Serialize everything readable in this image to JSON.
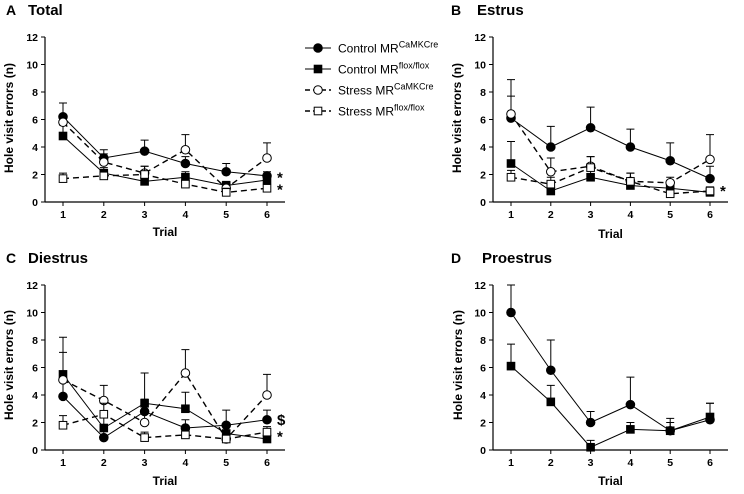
{
  "chart_data": [
    {
      "id": "A",
      "letter": "A",
      "title": "Total",
      "type": "line",
      "x": [
        1,
        2,
        3,
        4,
        5,
        6
      ],
      "xlabel": "Trial",
      "ylabel": "Hole visit errors (n)",
      "ylim": [
        0,
        12
      ],
      "yticks": [
        0,
        2,
        4,
        6,
        8,
        10,
        12
      ],
      "series": [
        {
          "name": "Control MR CaMKCre",
          "marker": "filled-circle",
          "dash": false,
          "values": [
            6.2,
            3.2,
            3.7,
            2.8,
            2.2,
            1.9
          ],
          "errors": [
            1.0,
            0.6,
            0.8,
            0.5,
            0.6,
            0.3
          ]
        },
        {
          "name": "Control MR flox/flox",
          "marker": "filled-square",
          "dash": false,
          "values": [
            4.8,
            2.1,
            1.5,
            1.8,
            1.2,
            1.6
          ],
          "errors": [
            0.8,
            0.4,
            0.3,
            0.4,
            0.3,
            0.3
          ]
        },
        {
          "name": "Stress MR CaMKCre",
          "marker": "open-circle",
          "dash": true,
          "values": [
            5.8,
            2.9,
            2.1,
            3.8,
            1.0,
            3.2
          ],
          "errors": [
            1.4,
            0.6,
            0.5,
            1.1,
            0.4,
            1.1
          ]
        },
        {
          "name": "Stress MR flox/flox",
          "marker": "open-square",
          "dash": true,
          "values": [
            1.7,
            1.9,
            2.0,
            1.3,
            0.7,
            1.0
          ],
          "errors": [
            0.4,
            0.4,
            0.6,
            0.3,
            0.3,
            0.3
          ]
        }
      ],
      "annotations": [
        {
          "text": "*",
          "x": 6,
          "y": 1.8
        },
        {
          "text": "*",
          "x": 6,
          "y": 0.9
        }
      ]
    },
    {
      "id": "B",
      "letter": "B",
      "title": "Estrus",
      "type": "line",
      "x": [
        1,
        2,
        3,
        4,
        5,
        6
      ],
      "xlabel": "Trial",
      "ylabel": "Hole visit errors (n)",
      "ylim": [
        0,
        12
      ],
      "yticks": [
        0,
        2,
        4,
        6,
        8,
        10,
        12
      ],
      "series": [
        {
          "name": "Control MR CaMKCre",
          "marker": "filled-circle",
          "dash": false,
          "values": [
            6.1,
            4.0,
            5.4,
            4.0,
            3.0,
            1.7
          ],
          "errors": [
            1.6,
            1.5,
            1.5,
            1.3,
            1.3,
            0.9
          ]
        },
        {
          "name": "Control MR flox/flox",
          "marker": "filled-square",
          "dash": false,
          "values": [
            2.8,
            0.8,
            1.8,
            1.2,
            1.0,
            0.7
          ],
          "errors": [
            1.6,
            0.6,
            0.5,
            0.4,
            0.3,
            0.3
          ]
        },
        {
          "name": "Stress MR CaMKCre",
          "marker": "open-circle",
          "dash": true,
          "values": [
            6.4,
            2.2,
            2.6,
            1.5,
            1.4,
            3.1
          ],
          "errors": [
            2.5,
            1.0,
            0.7,
            0.6,
            0.4,
            1.8
          ]
        },
        {
          "name": "Stress MR flox/flox",
          "marker": "open-square",
          "dash": true,
          "values": [
            1.8,
            1.3,
            2.5,
            1.5,
            0.6,
            0.8
          ],
          "errors": [
            0.5,
            0.5,
            0.8,
            0.6,
            0.3,
            0.3
          ]
        }
      ],
      "annotations": [
        {
          "text": "*",
          "x": 6,
          "y": 0.8
        }
      ]
    },
    {
      "id": "C",
      "letter": "C",
      "title": "Diestrus",
      "type": "line",
      "x": [
        1,
        2,
        3,
        4,
        5,
        6
      ],
      "xlabel": "Trial",
      "ylabel": "Hole visit errors (n)",
      "ylim": [
        0,
        12
      ],
      "yticks": [
        0,
        2,
        4,
        6,
        8,
        10,
        12
      ],
      "series": [
        {
          "name": "Control MR CaMKCre",
          "marker": "filled-circle",
          "dash": false,
          "values": [
            3.9,
            0.9,
            2.8,
            1.6,
            1.8,
            2.2
          ],
          "errors": [
            1.4,
            0.6,
            0.9,
            0.6,
            1.1,
            0.7
          ]
        },
        {
          "name": "Control MR flox/flox",
          "marker": "filled-square",
          "dash": false,
          "values": [
            5.5,
            1.6,
            3.4,
            3.0,
            1.2,
            0.8
          ],
          "errors": [
            2.7,
            1.0,
            2.2,
            1.2,
            0.5,
            0.3
          ]
        },
        {
          "name": "Stress MR CaMKCre",
          "marker": "open-circle",
          "dash": true,
          "values": [
            5.1,
            3.6,
            2.0,
            5.6,
            0.8,
            4.0
          ],
          "errors": [
            2.0,
            1.1,
            0.9,
            1.7,
            0.4,
            1.5
          ]
        },
        {
          "name": "Stress MR flox/flox",
          "marker": "open-square",
          "dash": true,
          "values": [
            1.8,
            2.6,
            0.9,
            1.1,
            0.8,
            1.3
          ],
          "errors": [
            0.7,
            0.8,
            0.4,
            0.4,
            0.3,
            0.4
          ]
        }
      ],
      "annotations": [
        {
          "text": "$",
          "x": 6,
          "y": 2.2
        },
        {
          "text": "*",
          "x": 6,
          "y": 1.0
        }
      ]
    },
    {
      "id": "D",
      "letter": "D",
      "title": "Proestrus",
      "type": "line",
      "x": [
        1,
        2,
        3,
        4,
        5,
        6
      ],
      "xlabel": "Trial",
      "ylabel": "Hole visit errors (n)",
      "ylim": [
        0,
        12
      ],
      "yticks": [
        0,
        2,
        4,
        6,
        8,
        10,
        12
      ],
      "series": [
        {
          "name": "Control MR CaMKCre",
          "marker": "filled-circle",
          "dash": false,
          "values": [
            10.0,
            5.8,
            2.0,
            3.3,
            1.4,
            2.2
          ],
          "errors": [
            2.0,
            2.2,
            0.8,
            2.0,
            0.9,
            1.2
          ]
        },
        {
          "name": "Control MR flox/flox",
          "marker": "filled-square",
          "dash": false,
          "values": [
            6.1,
            3.5,
            0.2,
            1.5,
            1.4,
            2.4
          ],
          "errors": [
            1.6,
            1.2,
            0.5,
            0.5,
            0.6,
            1.0
          ]
        }
      ],
      "annotations": []
    }
  ],
  "legend": [
    {
      "series": "Control MR CaMKCre",
      "label": "Control MR",
      "sup": "CaMKCre",
      "marker": "filled-circle",
      "dash": false
    },
    {
      "series": "Control MR flox/flox",
      "label": "Control MR",
      "sup": "flox/flox",
      "marker": "filled-square",
      "dash": false
    },
    {
      "series": "Stress MR CaMKCre",
      "label": "Stress MR",
      "sup": "CaMKCre",
      "marker": "open-circle",
      "dash": true
    },
    {
      "series": "Stress MR flox/flox",
      "label": "Stress MR",
      "sup": "flox/flox",
      "marker": "open-square",
      "dash": true
    }
  ]
}
